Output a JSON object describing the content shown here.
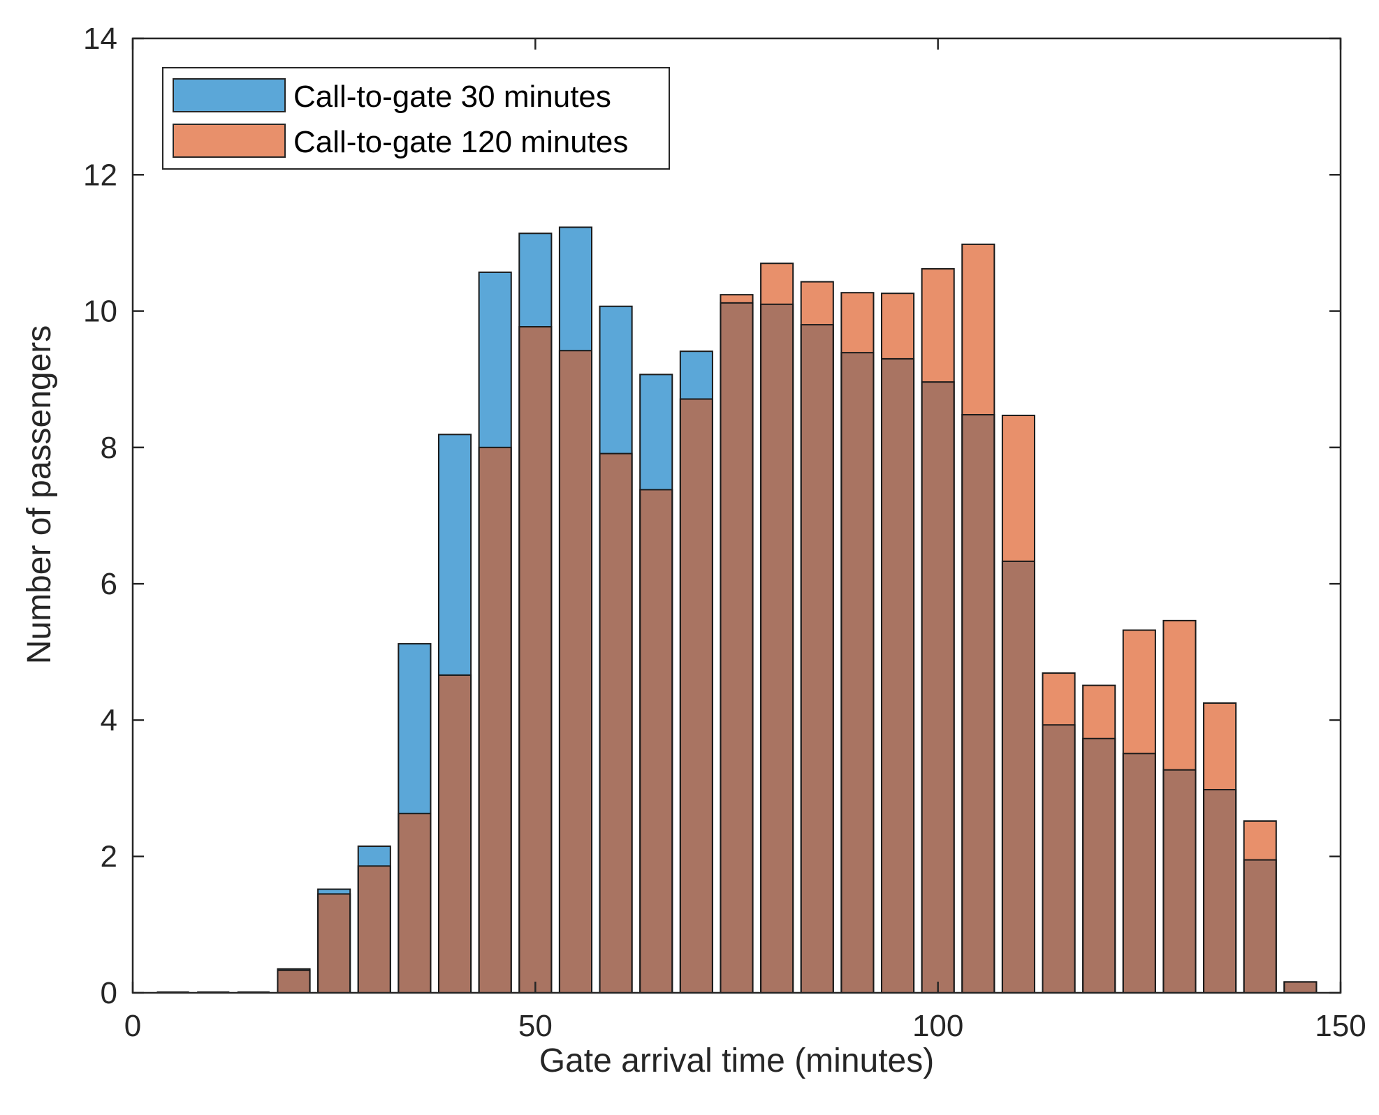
{
  "chart_data": {
    "type": "bar",
    "title": "",
    "xlabel": "Gate arrival time (minutes)",
    "ylabel": "Number of passengers",
    "xlim": [
      0,
      150
    ],
    "ylim": [
      0,
      14
    ],
    "xticks": [
      0,
      50,
      100,
      150
    ],
    "yticks": [
      0,
      2,
      4,
      6,
      8,
      10,
      12,
      14
    ],
    "grid": false,
    "legend_position": "top-left",
    "bin_width": 5,
    "bar_width": 4,
    "x": [
      5,
      10,
      15,
      20,
      25,
      30,
      35,
      40,
      45,
      50,
      55,
      60,
      65,
      70,
      75,
      80,
      85,
      90,
      95,
      100,
      105,
      110,
      115,
      120,
      125,
      130,
      135,
      140,
      145
    ],
    "series": [
      {
        "name": "Call-to-gate 30 minutes",
        "color": "#5ba7d8",
        "values": [
          0,
          0,
          0,
          0.35,
          1.52,
          2.15,
          5.12,
          8.19,
          10.57,
          11.14,
          11.23,
          10.07,
          9.07,
          9.41,
          10.12,
          10.1,
          9.8,
          9.39,
          9.3,
          8.96,
          8.48,
          6.33,
          3.93,
          3.73,
          3.51,
          3.27,
          2.98,
          1.95,
          0.16
        ]
      },
      {
        "name": "Call-to-gate 120 minutes",
        "color": "#e8906b",
        "values": [
          0,
          0,
          0,
          0.33,
          1.45,
          1.86,
          2.63,
          4.66,
          8.0,
          9.77,
          9.42,
          7.91,
          7.38,
          8.71,
          10.24,
          10.7,
          10.43,
          10.27,
          10.26,
          10.62,
          10.98,
          8.47,
          4.69,
          4.51,
          5.32,
          5.46,
          4.25,
          2.52,
          0.16
        ]
      }
    ],
    "overlap_color": "#a97462"
  }
}
